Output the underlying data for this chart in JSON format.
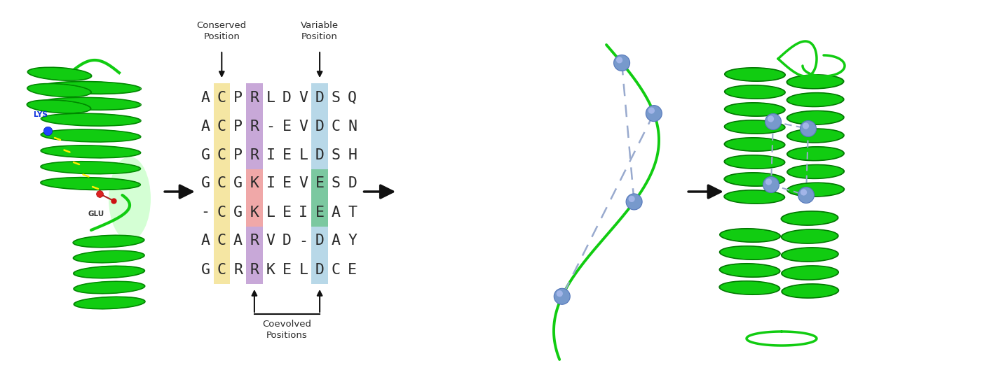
{
  "sequences": [
    "ACPRLDVDSQ",
    "ACPR-EVDCN",
    "GCPRIELDSH",
    "GCGKIEVESD",
    "-CGKLEIEAT",
    "ACARVD-DAY",
    "GCRRKELDCE"
  ],
  "col_highlights": {
    "1": "#F5E6A3",
    "3": "#C8A8D8",
    "7": "#B8D8E8"
  },
  "cell_overrides": [
    {
      "row": 3,
      "col": 3,
      "color": "#F0A8A8"
    },
    {
      "row": 4,
      "col": 3,
      "color": "#F0A8A8"
    },
    {
      "row": 3,
      "col": 7,
      "color": "#7BC8A0"
    },
    {
      "row": 4,
      "col": 7,
      "color": "#7BC8A0"
    }
  ],
  "bg_color": "#FFFFFF",
  "arrow_color": "#111111",
  "text_color": "#2A2A2A",
  "label_fontsize": 9.5,
  "seq_fontsize": 15.5,
  "sphere_color": "#7799CC",
  "sphere_highlight": "#AABBEE",
  "constraint_line_color": "#99AACE",
  "green_dark": "#00AA00",
  "green_bright": "#22DD22",
  "green_ribbon": "#11CC11"
}
